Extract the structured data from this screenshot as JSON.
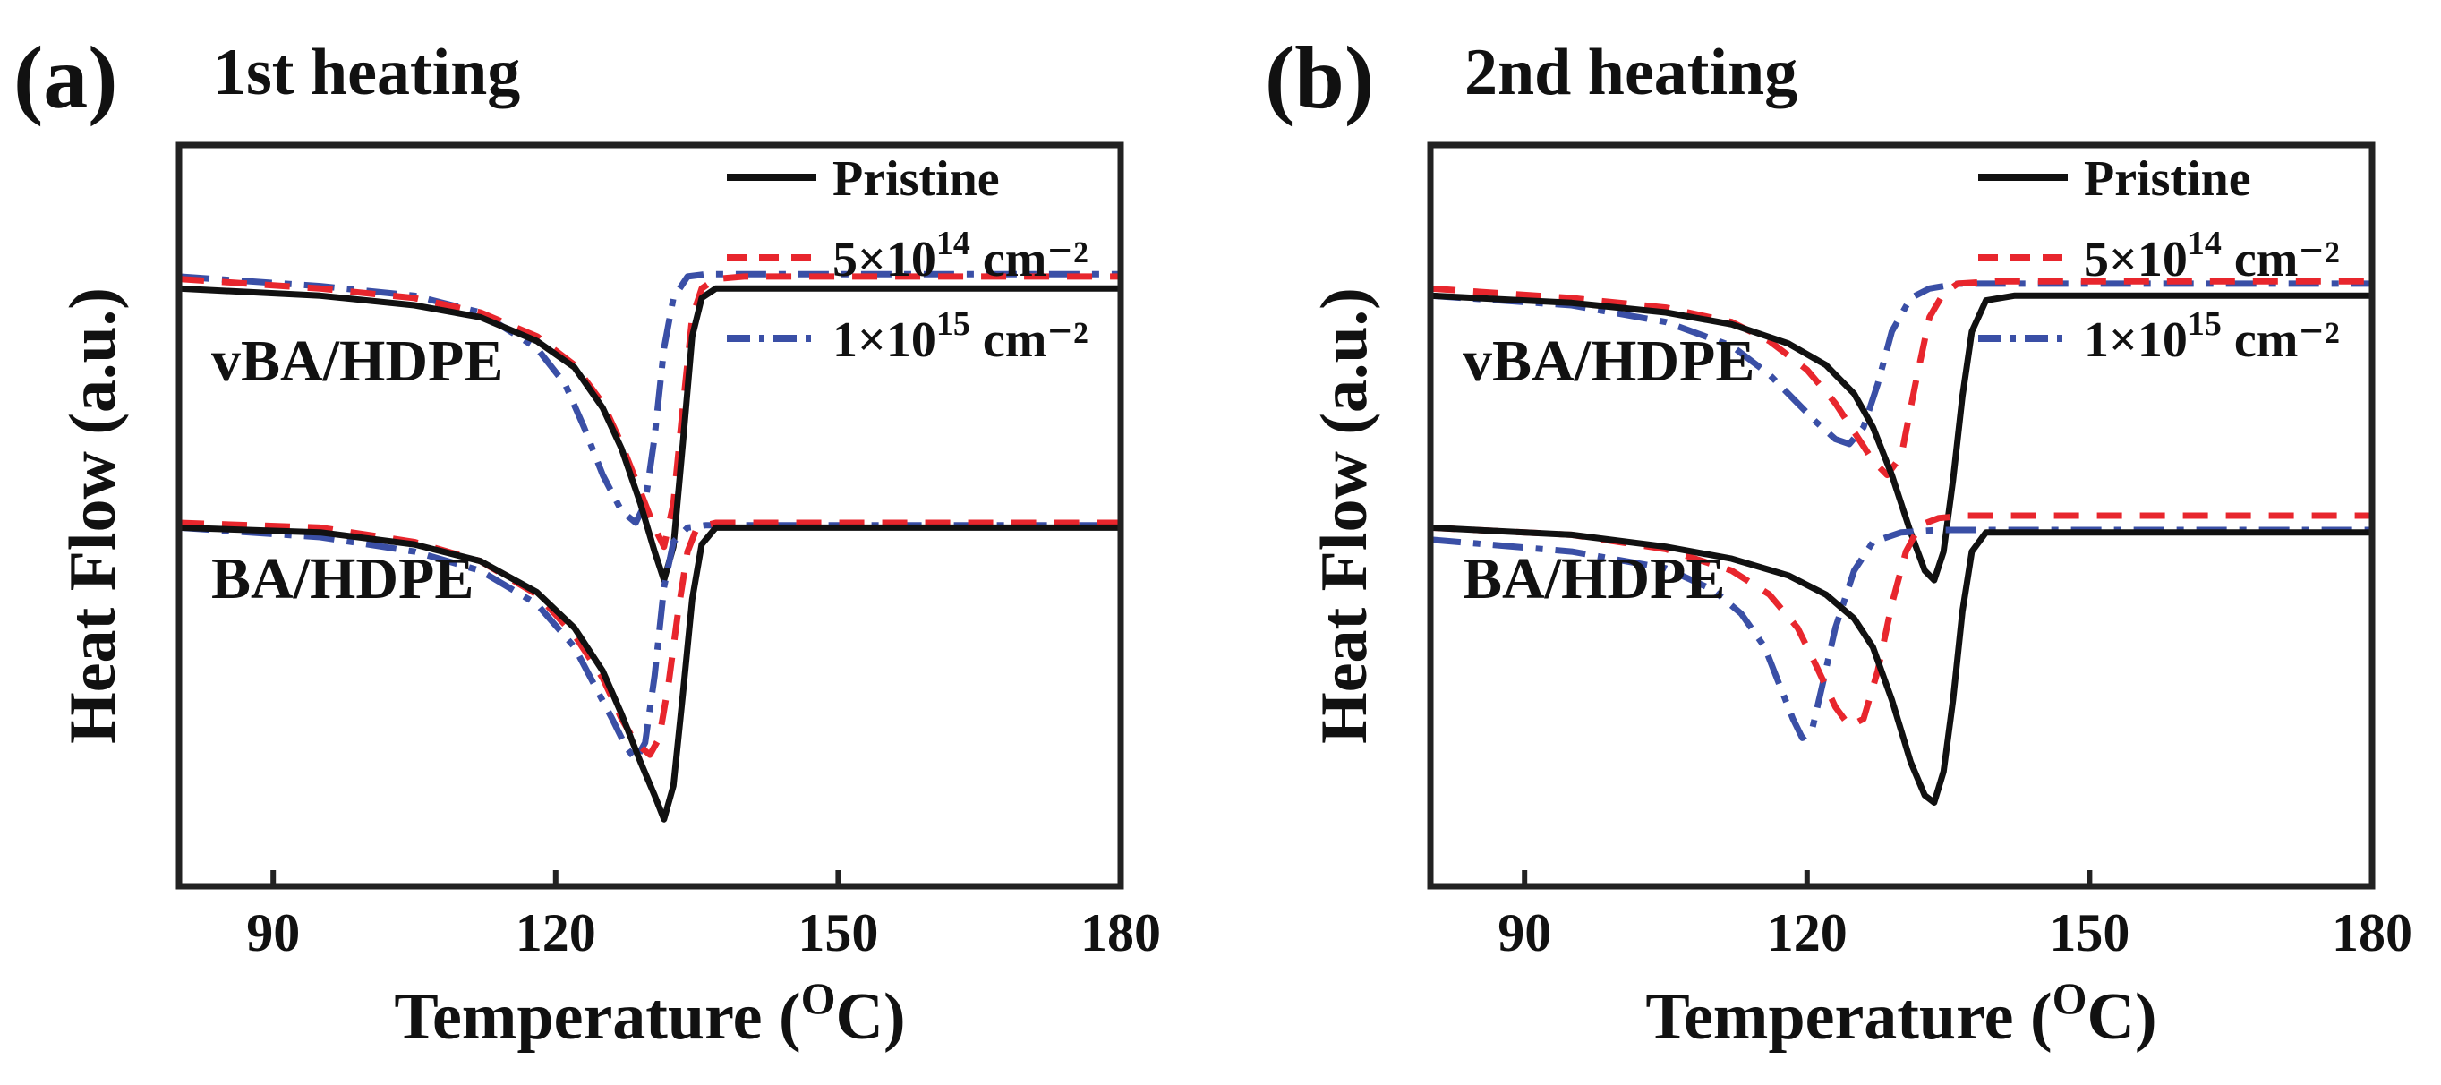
{
  "colors": {
    "pristine": "#111111",
    "dose_5e14": "#e8262d",
    "dose_1e15": "#3a4fa6",
    "frame": "#222222"
  },
  "chart_data": [
    {
      "type": "line",
      "panel_label": "(a)",
      "title": "1st heating",
      "xlabel": "Temperature (",
      "xlabel_sup": "O",
      "xlabel_end": "C)",
      "ylabel": "Heat Flow (a.u.)",
      "xlim": [
        80,
        180
      ],
      "ylim": [
        -1.5,
        1.6
      ],
      "xticks": [
        90,
        120,
        150,
        180
      ],
      "grid": false,
      "legend_position": "top-right",
      "legend": [
        {
          "key": "pristine",
          "base": "Pristine",
          "sup": "",
          "tail": "",
          "style": "solid"
        },
        {
          "key": "dose_5e14",
          "base": "5×10",
          "sup": "14",
          "tail": " cm⁻²",
          "style": "dashed"
        },
        {
          "key": "dose_1e15",
          "base": "1×10",
          "sup": "15",
          "tail": " cm⁻²",
          "style": "dashdot"
        }
      ],
      "groups": [
        {
          "label": "vBA/HDPE",
          "series": [
            {
              "key": "pristine",
              "x": [
                80,
                95,
                105,
                112,
                118,
                122,
                125,
                127,
                129,
                130.5,
                131.5,
                132.5,
                133.5,
                134.5,
                135.5,
                137,
                140,
                180
              ],
              "y": [
                1.0,
                0.97,
                0.93,
                0.88,
                0.78,
                0.67,
                0.5,
                0.33,
                0.1,
                -0.1,
                -0.22,
                -0.08,
                0.35,
                0.8,
                0.96,
                1.0,
                1.0,
                1.0
              ]
            },
            {
              "key": "dose_5e14",
              "x": [
                80,
                95,
                105,
                112,
                118,
                122,
                125,
                127,
                129,
                130.5,
                131.5,
                132.5,
                133.5,
                134.5,
                135.5,
                137,
                140,
                180
              ],
              "y": [
                1.04,
                1.0,
                0.96,
                0.9,
                0.8,
                0.68,
                0.52,
                0.35,
                0.15,
                0.0,
                -0.08,
                0.1,
                0.5,
                0.88,
                1.0,
                1.04,
                1.05,
                1.05
              ]
            },
            {
              "key": "dose_1e15",
              "x": [
                80,
                95,
                105,
                112,
                118,
                121,
                123,
                125,
                127,
                128.5,
                129.5,
                130.5,
                131.5,
                132.5,
                134,
                136,
                140,
                180
              ],
              "y": [
                1.05,
                1.01,
                0.97,
                0.9,
                0.75,
                0.6,
                0.42,
                0.22,
                0.07,
                0.02,
                0.1,
                0.38,
                0.75,
                0.96,
                1.05,
                1.06,
                1.06,
                1.06
              ]
            }
          ]
        },
        {
          "label": "BA/HDPE",
          "series": [
            {
              "key": "pristine",
              "x": [
                80,
                95,
                105,
                112,
                118,
                122,
                125,
                127,
                129,
                130.5,
                131.5,
                132.5,
                133.5,
                134.5,
                135.5,
                137,
                140,
                180
              ],
              "y": [
                0.0,
                -0.02,
                -0.07,
                -0.14,
                -0.27,
                -0.42,
                -0.6,
                -0.78,
                -0.98,
                -1.12,
                -1.22,
                -1.08,
                -0.7,
                -0.3,
                -0.07,
                0.0,
                0.0,
                0.0
              ]
            },
            {
              "key": "dose_5e14",
              "x": [
                80,
                95,
                105,
                112,
                118,
                122,
                125,
                127,
                128.5,
                130,
                131,
                132,
                133,
                134,
                135,
                137,
                140,
                180
              ],
              "y": [
                0.02,
                0.0,
                -0.06,
                -0.14,
                -0.28,
                -0.45,
                -0.63,
                -0.8,
                -0.9,
                -0.95,
                -0.88,
                -0.65,
                -0.35,
                -0.1,
                0.0,
                0.02,
                0.02,
                0.02
              ]
            },
            {
              "key": "dose_1e15",
              "x": [
                80,
                95,
                105,
                112,
                118,
                122,
                124,
                126,
                127.5,
                128.5,
                129.5,
                130.5,
                131.5,
                132.5,
                134,
                136,
                140,
                180
              ],
              "y": [
                0.0,
                -0.04,
                -0.1,
                -0.18,
                -0.32,
                -0.5,
                -0.65,
                -0.8,
                -0.92,
                -0.97,
                -0.9,
                -0.62,
                -0.25,
                -0.06,
                0.0,
                0.01,
                0.01,
                0.01
              ]
            }
          ]
        }
      ]
    },
    {
      "type": "line",
      "panel_label": "(b)",
      "title": "2nd heating",
      "xlabel": "Temperature (",
      "xlabel_sup": "O",
      "xlabel_end": "C)",
      "ylabel": "Heat Flow (a.u.)",
      "xlim": [
        80,
        180
      ],
      "ylim": [
        -1.5,
        1.6
      ],
      "xticks": [
        90,
        120,
        150,
        180
      ],
      "grid": false,
      "legend_position": "top-right",
      "legend": [
        {
          "key": "pristine",
          "base": "Pristine",
          "sup": "",
          "tail": "",
          "style": "solid"
        },
        {
          "key": "dose_5e14",
          "base": "5×10",
          "sup": "14",
          "tail": " cm⁻²",
          "style": "dashed"
        },
        {
          "key": "dose_1e15",
          "base": "1×10",
          "sup": "15",
          "tail": " cm⁻²",
          "style": "dashdot"
        }
      ],
      "groups": [
        {
          "label": "vBA/HDPE",
          "series": [
            {
              "key": "pristine",
              "x": [
                80,
                95,
                105,
                112,
                118,
                122,
                125,
                127,
                129,
                131,
                132.5,
                133.5,
                134.5,
                135.5,
                136.5,
                137.5,
                139,
                142,
                180
              ],
              "y": [
                0.97,
                0.94,
                0.9,
                0.85,
                0.77,
                0.68,
                0.56,
                0.42,
                0.22,
                -0.02,
                -0.18,
                -0.22,
                -0.1,
                0.2,
                0.55,
                0.82,
                0.95,
                0.97,
                0.97
              ]
            },
            {
              "key": "dose_5e14",
              "x": [
                80,
                95,
                105,
                112,
                116,
                120,
                123,
                125,
                127,
                128.5,
                130,
                131.5,
                133,
                134.5,
                136,
                140,
                180
              ],
              "y": [
                1.0,
                0.96,
                0.92,
                0.86,
                0.78,
                0.66,
                0.52,
                0.4,
                0.28,
                0.22,
                0.3,
                0.6,
                0.88,
                0.98,
                1.02,
                1.03,
                1.03
              ]
            },
            {
              "key": "dose_1e15",
              "x": [
                80,
                95,
                105,
                112,
                116,
                119,
                121,
                123,
                124.5,
                126,
                127.5,
                129,
                131,
                133,
                136,
                140,
                180
              ],
              "y": [
                0.97,
                0.93,
                0.86,
                0.76,
                0.64,
                0.52,
                0.44,
                0.37,
                0.35,
                0.42,
                0.6,
                0.82,
                0.96,
                1.0,
                1.02,
                1.02,
                1.02
              ]
            }
          ]
        },
        {
          "label": "BA/HDPE",
          "series": [
            {
              "key": "pristine",
              "x": [
                80,
                95,
                105,
                112,
                118,
                122,
                125,
                127,
                129,
                131,
                132.5,
                133.5,
                134.5,
                135.5,
                136.5,
                137.5,
                139,
                142,
                180
              ],
              "y": [
                0.0,
                -0.03,
                -0.08,
                -0.13,
                -0.2,
                -0.28,
                -0.38,
                -0.5,
                -0.72,
                -0.98,
                -1.12,
                -1.15,
                -1.02,
                -0.72,
                -0.35,
                -0.1,
                -0.02,
                -0.02,
                -0.02
              ]
            },
            {
              "key": "dose_5e14",
              "x": [
                80,
                95,
                105,
                112,
                116,
                119,
                121,
                123,
                124.5,
                126,
                127.5,
                129,
                130.5,
                132,
                134,
                137,
                140,
                180
              ],
              "y": [
                0.0,
                -0.03,
                -0.09,
                -0.18,
                -0.28,
                -0.42,
                -0.58,
                -0.75,
                -0.83,
                -0.8,
                -0.6,
                -0.32,
                -0.1,
                0.01,
                0.04,
                0.05,
                0.05,
                0.05
              ]
            },
            {
              "key": "dose_1e15",
              "x": [
                80,
                95,
                105,
                110,
                113,
                115.5,
                117,
                118.5,
                119.5,
                120.5,
                121.5,
                123,
                125,
                127,
                130,
                134,
                140,
                180
              ],
              "y": [
                -0.05,
                -0.1,
                -0.17,
                -0.26,
                -0.36,
                -0.5,
                -0.65,
                -0.8,
                -0.88,
                -0.85,
                -0.68,
                -0.42,
                -0.18,
                -0.06,
                -0.02,
                -0.01,
                -0.01,
                -0.01
              ]
            }
          ]
        }
      ]
    }
  ]
}
